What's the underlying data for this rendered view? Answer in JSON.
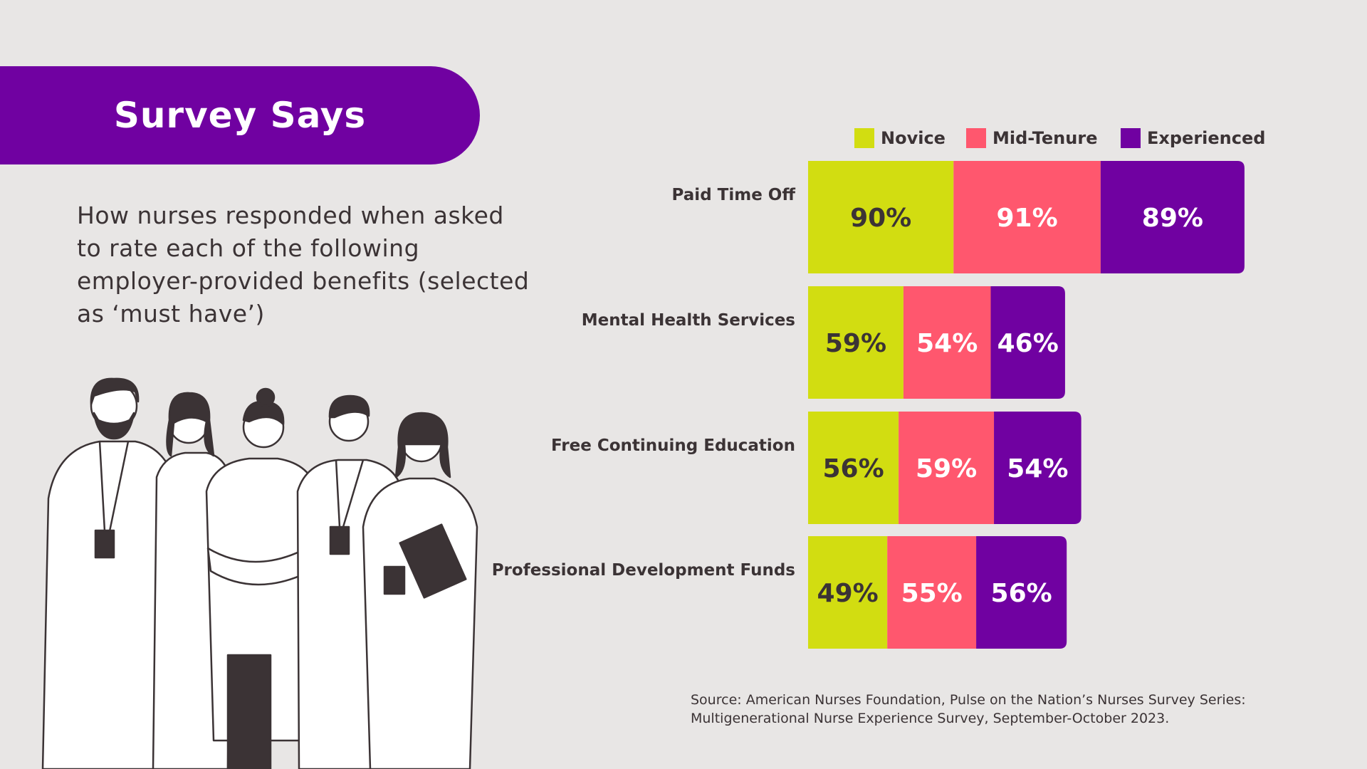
{
  "header": {
    "title": "Survey Says",
    "subtitle": "How nurses responded when asked to rate each of the following employer-provided benefits (selected as ‘must have’)"
  },
  "source": "Source: American Nurses Foundation, Pulse on the Nation’s Nurses Survey Series: Multigenerational Nurse Experience Survey, September-October 2023.",
  "colors": {
    "novice": "#d2dd11",
    "mid_tenure": "#ff576e",
    "experienced": "#7001a1",
    "background": "#e8e6e5"
  },
  "illustration": {
    "name": "nurses-group-illustration"
  },
  "chart_data": {
    "type": "bar",
    "orientation": "horizontal-stacked",
    "title": "",
    "categories": [
      "Paid Time Off",
      "Mental Health Services",
      "Free Continuing Education",
      "Professional Development Funds"
    ],
    "series": [
      {
        "name": "Novice",
        "color": "#d2dd11",
        "label_color": "#3b3335",
        "values": [
          90,
          59,
          56,
          49
        ]
      },
      {
        "name": "Mid-Tenure",
        "color": "#ff576e",
        "label_color": "#ffffff",
        "values": [
          91,
          54,
          59,
          55
        ]
      },
      {
        "name": "Experienced",
        "color": "#7001a1",
        "label_color": "#ffffff",
        "values": [
          89,
          46,
          54,
          56
        ]
      }
    ],
    "value_suffix": "%",
    "legend": "top-right",
    "xlabel": "",
    "ylabel": ""
  }
}
